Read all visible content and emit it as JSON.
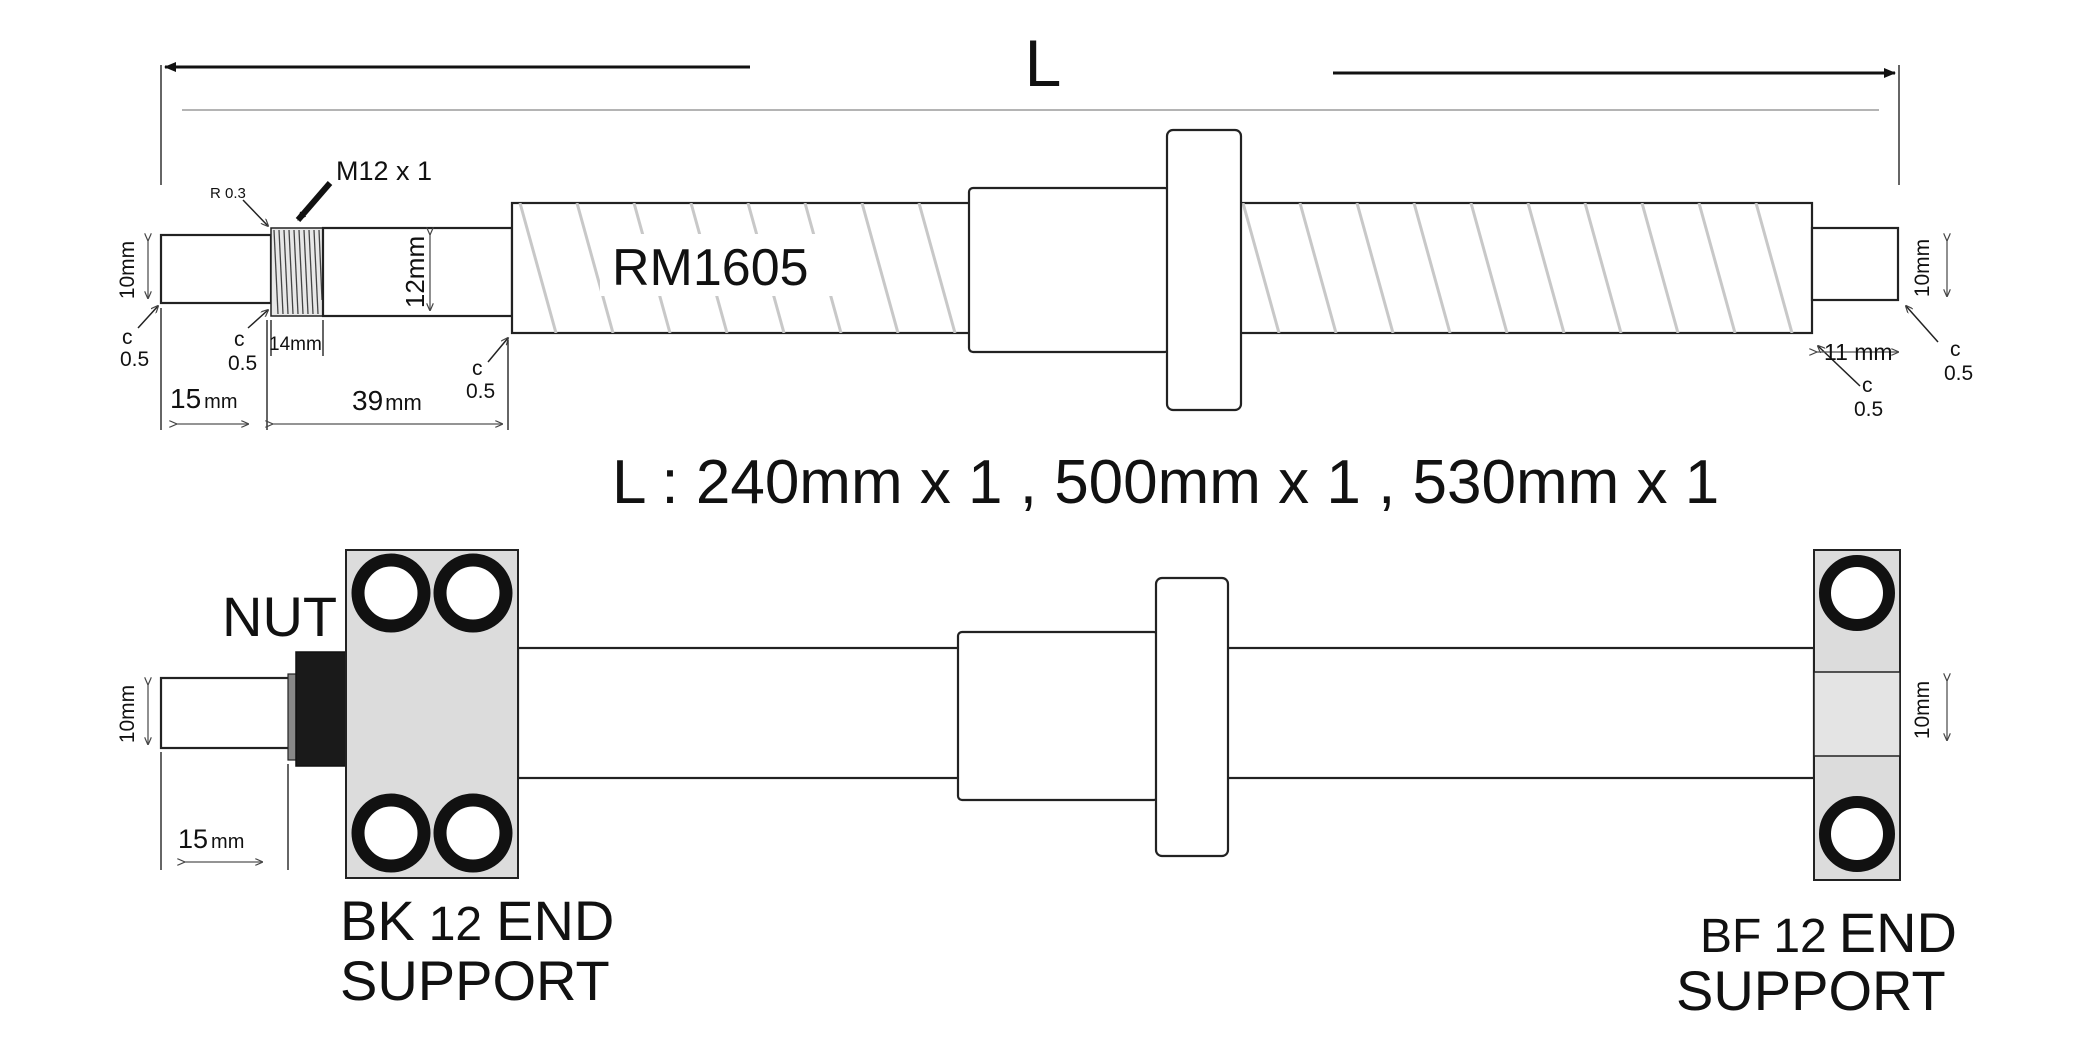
{
  "diagram": {
    "overall_length_label": "L",
    "screw_model": "RM1605",
    "thread_label": "M12 x 1",
    "radius_label": "R 0.3",
    "chamfer_c": "c",
    "chamfer_value": "0.5",
    "dims": {
      "d_10mm": "10mm",
      "d_12mm": "12mm",
      "d_14mm": "14mm",
      "d_15": "15",
      "d_mm": "mm",
      "d_39": "39",
      "d_11mm": "11 mm"
    },
    "lengths_text": "L :  240mm x 1 , 500mm x 1 , 530mm x 1",
    "nut_label": "NUT",
    "bk_support": {
      "line1_a": "BK",
      "line1_b": "12",
      "line1_c": "END",
      "line2": "SUPPORT"
    },
    "bf_support": {
      "line1_a": "BF",
      "line1_b": "12",
      "line1_c": "END",
      "line2": "SUPPORT"
    },
    "colors": {
      "block": "#dcdcdc",
      "ring": "#111111",
      "thread_stripe": "#c8c8c8",
      "nut_body": "#1a1a1a"
    }
  }
}
